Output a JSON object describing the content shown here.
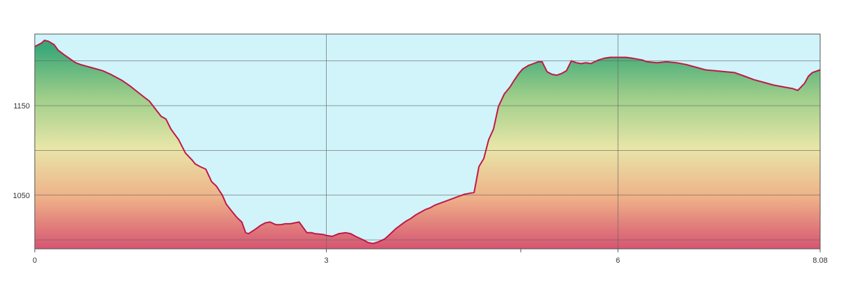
{
  "chart_data": {
    "type": "area",
    "title": "",
    "xlabel": "",
    "ylabel": "",
    "xlim": [
      0,
      8.08
    ],
    "ylim": [
      990,
      1230
    ],
    "x_ticks": [
      {
        "value": 0,
        "label": "0"
      },
      {
        "value": 3,
        "label": "3"
      },
      {
        "value": 6,
        "label": "6"
      },
      {
        "value": 8.08,
        "label": "8.08"
      }
    ],
    "x_minor_ticks": [
      5
    ],
    "x_gridlines": [
      3,
      6
    ],
    "y_ticks": [
      {
        "value": 1150,
        "label": "1150"
      },
      {
        "value": 1050,
        "label": "1050"
      }
    ],
    "y_gridlines": [
      1000,
      1050,
      1100,
      1150,
      1200
    ],
    "grid": true,
    "legend": "none",
    "colors": {
      "line": "#c01848",
      "sky": "#d0f4fa",
      "grid": "#666666",
      "fill_gradient": [
        "#3aa878",
        "#9fce8a",
        "#e8e6a8",
        "#eeb088",
        "#d65472"
      ]
    },
    "series": [
      {
        "x": [
          0,
          0.07,
          0.1,
          0.14,
          0.2,
          0.24,
          0.3,
          0.38,
          0.42,
          0.47,
          0.6,
          0.7,
          0.78,
          0.85,
          0.9,
          0.98,
          1.05,
          1.12,
          1.18,
          1.25,
          1.3,
          1.35,
          1.4,
          1.48,
          1.55,
          1.62,
          1.65,
          1.7,
          1.76,
          1.82,
          1.87,
          1.93,
          1.97,
          2.02,
          2.08,
          2.13,
          2.17,
          2.2,
          2.27,
          2.32,
          2.37,
          2.42,
          2.48,
          2.53,
          2.58,
          2.63,
          2.72,
          2.8,
          2.85,
          2.88,
          2.97,
          3.0,
          3.06,
          3.13,
          3.2,
          3.25,
          3.3,
          3.38,
          3.43,
          3.48,
          3.54,
          3.6,
          3.64,
          3.68,
          3.72,
          3.77,
          3.82,
          3.87,
          3.92,
          3.97,
          4.02,
          4.07,
          4.12,
          4.17,
          4.22,
          4.27,
          4.32,
          4.37,
          4.42,
          4.47,
          4.52,
          4.57,
          4.62,
          4.67,
          4.72,
          4.77,
          4.83,
          4.89,
          4.93,
          4.98,
          5.02,
          5.08,
          5.13,
          5.18,
          5.22,
          5.27,
          5.32,
          5.37,
          5.42,
          5.47,
          5.52,
          5.57,
          5.62,
          5.67,
          5.72,
          5.8,
          5.86,
          5.92,
          6.0,
          6.08,
          6.15,
          6.25,
          6.3,
          6.4,
          6.5,
          6.6,
          6.7,
          6.8,
          6.9,
          7.0,
          7.1,
          7.2,
          7.3,
          7.4,
          7.5,
          7.6,
          7.7,
          7.8,
          7.85,
          7.92,
          7.96,
          8.0,
          8.08
        ],
        "y": [
          1216,
          1220,
          1223,
          1222,
          1218,
          1212,
          1207,
          1201,
          1198,
          1196,
          1192,
          1189,
          1185,
          1181,
          1178,
          1172,
          1166,
          1160,
          1155,
          1145,
          1138,
          1135,
          1124,
          1112,
          1097,
          1089,
          1085,
          1082,
          1079,
          1065,
          1060,
          1050,
          1040,
          1033,
          1025,
          1020,
          1008,
          1007,
          1012,
          1016,
          1019,
          1020,
          1017,
          1017,
          1018,
          1018,
          1020,
          1008,
          1008,
          1007,
          1006,
          1005,
          1004,
          1007,
          1008,
          1007,
          1004,
          1000,
          997,
          996,
          998,
          1001,
          1005,
          1009,
          1013,
          1017,
          1021,
          1024,
          1028,
          1031,
          1034,
          1036,
          1039,
          1041,
          1043,
          1045,
          1047,
          1049,
          1051,
          1052,
          1053,
          1082,
          1091,
          1112,
          1124,
          1149,
          1163,
          1171,
          1178,
          1186,
          1191,
          1195,
          1197,
          1199,
          1199,
          1188,
          1185,
          1184,
          1186,
          1189,
          1200,
          1198,
          1197,
          1198,
          1197,
          1201,
          1203,
          1204,
          1204,
          1204,
          1203,
          1201,
          1199,
          1198,
          1199,
          1198,
          1196,
          1193,
          1190,
          1189,
          1188,
          1187,
          1183,
          1179,
          1176,
          1173,
          1171,
          1169,
          1167,
          1175,
          1183,
          1187,
          1190
        ]
      }
    ]
  }
}
